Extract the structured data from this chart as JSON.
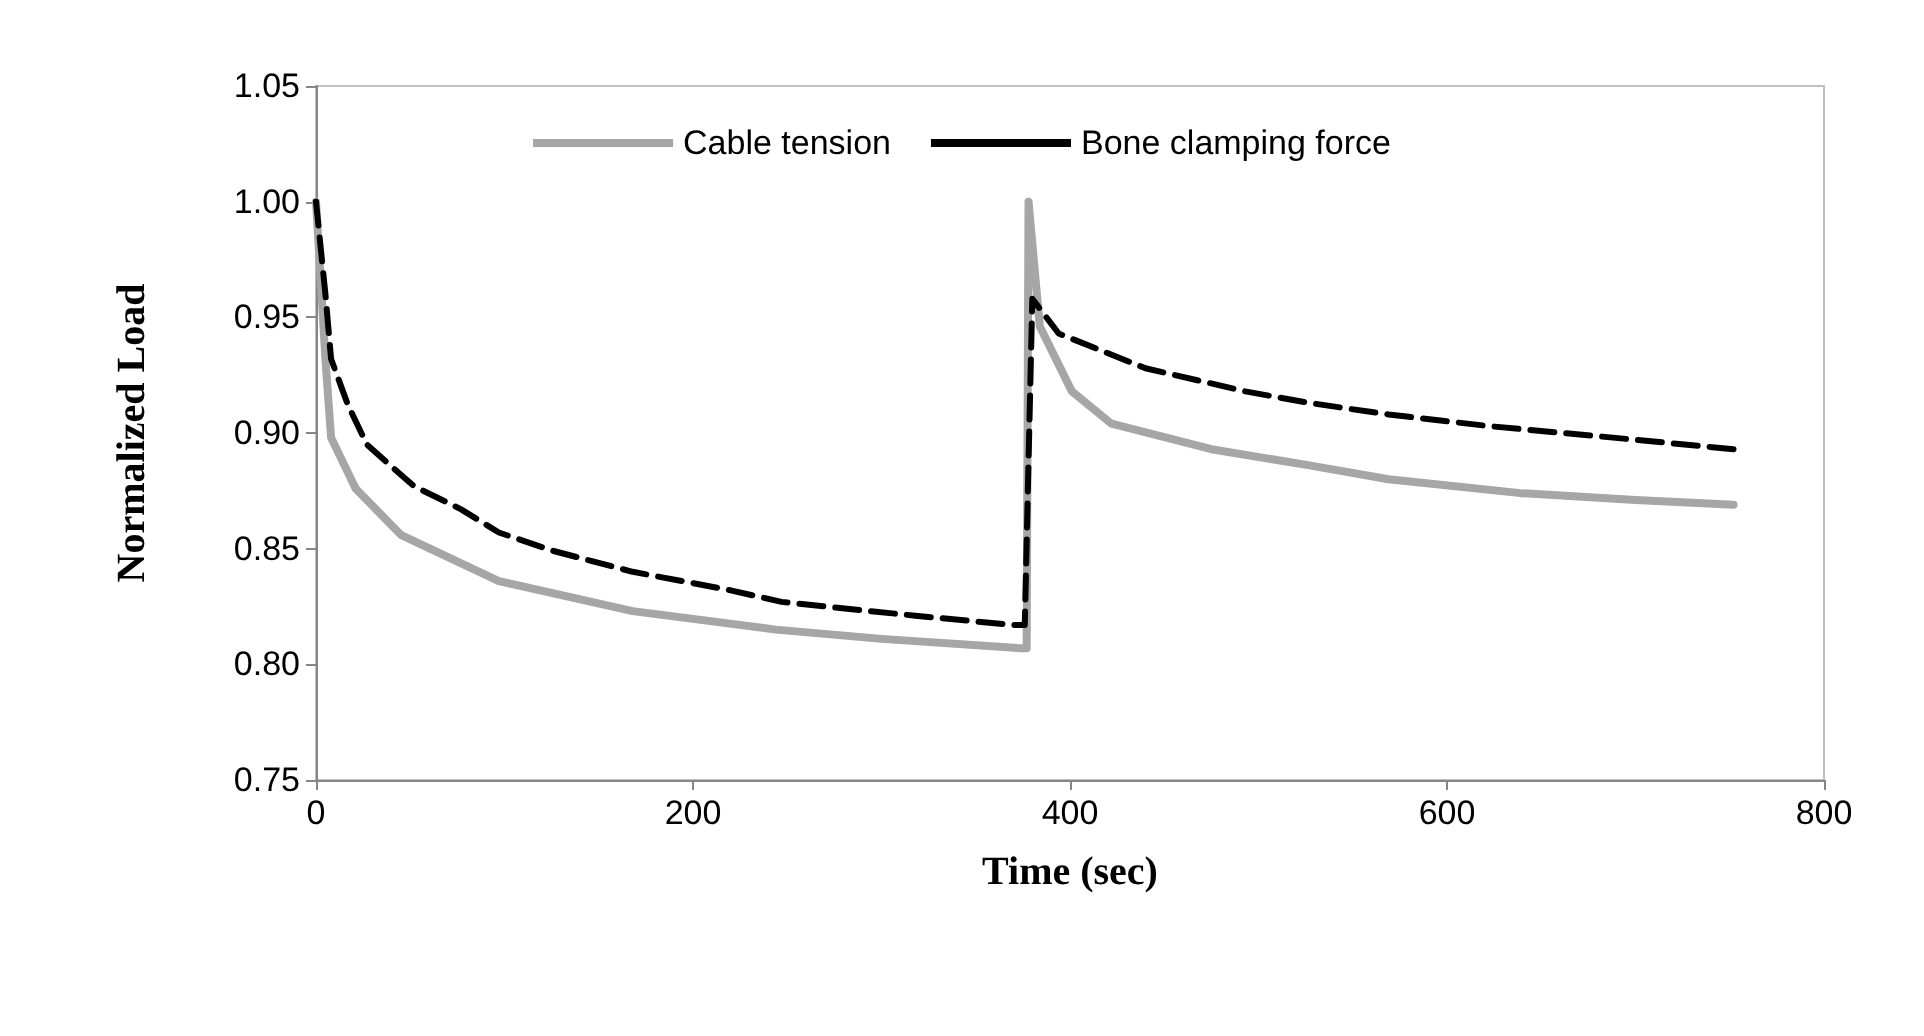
{
  "chart_data": {
    "type": "line",
    "xlabel": "Time (sec)",
    "ylabel": "Normalized Load",
    "xlim": [
      0,
      800
    ],
    "xticks": [
      0,
      200,
      400,
      600,
      800
    ],
    "ylim": [
      0.75,
      1.05
    ],
    "yticks": [
      {
        "value": 0.75,
        "label": "0.75"
      },
      {
        "value": 0.8,
        "label": "0.80"
      },
      {
        "value": 0.85,
        "label": "0.85"
      },
      {
        "value": 0.9,
        "label": "0.90"
      },
      {
        "value": 0.95,
        "label": "0.95"
      },
      {
        "value": 1.0,
        "label": "1.00"
      },
      {
        "value": 1.05,
        "label": "1.05"
      }
    ],
    "grid": false,
    "legend": "top",
    "marker": "none",
    "series": [
      {
        "name": "Cable tension",
        "color": "#a6a6a6",
        "line_style": "solid",
        "x": [
          0,
          5,
          8,
          21,
          45,
          97,
          168,
          244,
          300,
          373,
          377,
          378,
          384,
          401,
          422,
          475,
          527,
          569,
          639,
          700,
          752
        ],
        "values": [
          1.0,
          0.932,
          0.898,
          0.876,
          0.856,
          0.836,
          0.823,
          0.815,
          0.811,
          0.807,
          0.807,
          1.0,
          0.946,
          0.918,
          0.904,
          0.893,
          0.886,
          0.88,
          0.874,
          0.871,
          0.869
        ]
      },
      {
        "name": "Bone clamping force",
        "color": "#000000",
        "line_style": "dashed",
        "x": [
          0,
          5,
          8,
          17,
          27,
          38,
          52,
          77,
          97,
          126,
          168,
          220,
          247,
          318,
          370,
          376,
          380,
          394,
          440,
          493,
          527,
          569,
          622,
          688,
          752
        ],
        "values": [
          1.0,
          0.96,
          0.932,
          0.912,
          0.895,
          0.887,
          0.877,
          0.867,
          0.857,
          0.849,
          0.84,
          0.832,
          0.827,
          0.821,
          0.817,
          0.817,
          0.958,
          0.943,
          0.928,
          0.918,
          0.913,
          0.908,
          0.903,
          0.898,
          0.893
        ]
      }
    ]
  }
}
